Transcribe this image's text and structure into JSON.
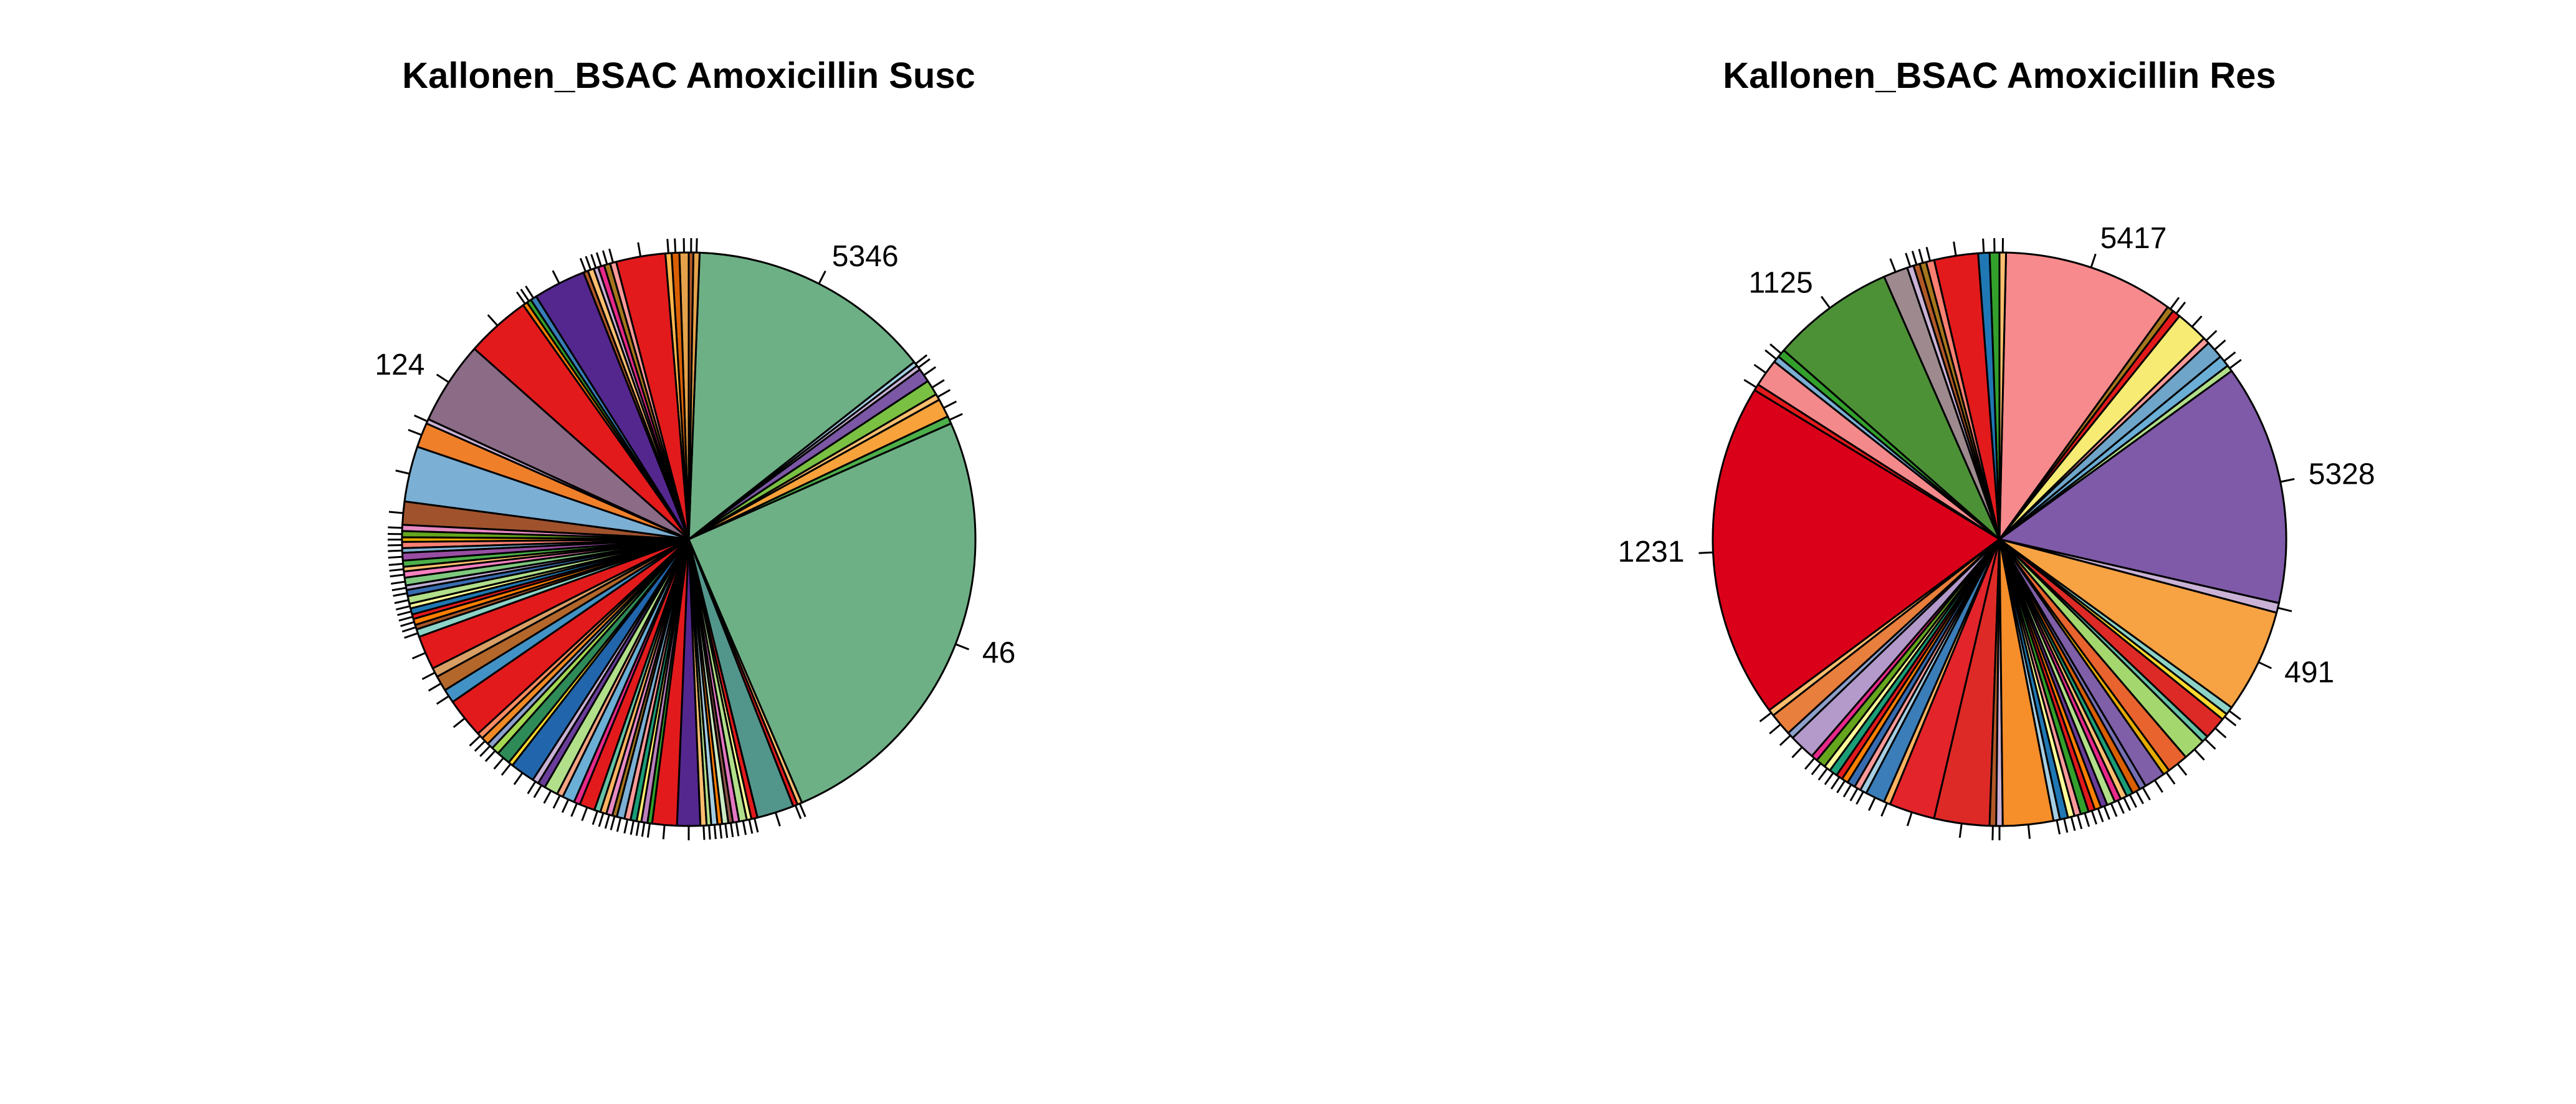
{
  "chart_data": [
    {
      "type": "pie",
      "title": "Kallonen_BSAC Amoxicillin Susc",
      "slices": [
        {
          "label": "",
          "value": 0.6,
          "color": "#E5A24A"
        },
        {
          "label": "",
          "value": 0.5,
          "color": "#D95F02"
        },
        {
          "label": "",
          "value": 0.4,
          "color": "#FFB74D"
        },
        {
          "label": "",
          "value": 3.2,
          "color": "#E31A1C"
        },
        {
          "label": "",
          "value": 0.4,
          "color": "#FB9A99"
        },
        {
          "label": "",
          "value": 0.4,
          "color": "#A6761D"
        },
        {
          "label": "",
          "value": 0.4,
          "color": "#E7298A"
        },
        {
          "label": "",
          "value": 0.3,
          "color": "#CAB2D6"
        },
        {
          "label": "",
          "value": 0.4,
          "color": "#FDBF6F"
        },
        {
          "label": "",
          "value": 0.3,
          "color": "#B15928"
        },
        {
          "label": "",
          "value": 3.4,
          "color": "#54278F"
        },
        {
          "label": "",
          "value": 0.4,
          "color": "#377EB8"
        },
        {
          "label": "",
          "value": 0.3,
          "color": "#33A02C"
        },
        {
          "label": "",
          "value": 0.3,
          "color": "#FF7F00"
        },
        {
          "label": "",
          "value": 4.2,
          "color": "#E31A1C"
        },
        {
          "label": "124",
          "value": 5.4,
          "color": "#8B6B86"
        },
        {
          "label": "",
          "value": 0.3,
          "color": "#CAB2D6"
        },
        {
          "label": "",
          "value": 1.6,
          "color": "#F07F29"
        },
        {
          "label": "",
          "value": 3.6,
          "color": "#7BAFD4"
        },
        {
          "label": "",
          "value": 1.5,
          "color": "#A0522D"
        },
        {
          "label": "",
          "value": 0.4,
          "color": "#E78AC3"
        },
        {
          "label": "",
          "value": 0.4,
          "color": "#66A61E"
        },
        {
          "label": "",
          "value": 0.3,
          "color": "#E6AB02"
        },
        {
          "label": "",
          "value": 0.4,
          "color": "#FB8072"
        },
        {
          "label": "",
          "value": 0.3,
          "color": "#80B1D3"
        },
        {
          "label": "",
          "value": 0.5,
          "color": "#984EA3"
        },
        {
          "label": "",
          "value": 0.4,
          "color": "#4DAF4A"
        },
        {
          "label": "",
          "value": 0.3,
          "color": "#FDBF6F"
        },
        {
          "label": "",
          "value": 0.4,
          "color": "#F781BF"
        },
        {
          "label": "",
          "value": 0.5,
          "color": "#7FC97F"
        },
        {
          "label": "",
          "value": 0.3,
          "color": "#BEAED4"
        },
        {
          "label": "",
          "value": 0.4,
          "color": "#386CB0"
        },
        {
          "label": "",
          "value": 0.5,
          "color": "#B2DF8A"
        },
        {
          "label": "",
          "value": 0.3,
          "color": "#FFFF99"
        },
        {
          "label": "",
          "value": 0.4,
          "color": "#1F78B4"
        },
        {
          "label": "",
          "value": 0.3,
          "color": "#E41A1C"
        },
        {
          "label": "",
          "value": 0.4,
          "color": "#FF7F00"
        },
        {
          "label": "",
          "value": 0.3,
          "color": "#A65628"
        },
        {
          "label": "",
          "value": 0.5,
          "color": "#8DD3C7"
        },
        {
          "label": "",
          "value": 2.2,
          "color": "#E31A1C"
        },
        {
          "label": "",
          "value": 0.6,
          "color": "#D9A066"
        },
        {
          "label": "",
          "value": 1.0,
          "color": "#B3672B"
        },
        {
          "label": "",
          "value": 0.9,
          "color": "#4292C6"
        },
        {
          "label": "",
          "value": 2.6,
          "color": "#E31A1C"
        },
        {
          "label": "",
          "value": 0.4,
          "color": "#FC8D62"
        },
        {
          "label": "",
          "value": 0.5,
          "color": "#F08A24"
        },
        {
          "label": "",
          "value": 0.4,
          "color": "#8DA0CB"
        },
        {
          "label": "",
          "value": 0.5,
          "color": "#A6D854"
        },
        {
          "label": "",
          "value": 0.9,
          "color": "#2E8B57"
        },
        {
          "label": "",
          "value": 0.3,
          "color": "#FFD92F"
        },
        {
          "label": "",
          "value": 1.6,
          "color": "#2166AC"
        },
        {
          "label": "",
          "value": 0.4,
          "color": "#CAB2D6"
        },
        {
          "label": "",
          "value": 0.5,
          "color": "#6A3D9A"
        },
        {
          "label": "",
          "value": 0.9,
          "color": "#B2DF8A"
        },
        {
          "label": "",
          "value": 0.4,
          "color": "#F4A582"
        },
        {
          "label": "",
          "value": 0.8,
          "color": "#6BAED6"
        },
        {
          "label": "",
          "value": 0.4,
          "color": "#E7298A"
        },
        {
          "label": "",
          "value": 1.0,
          "color": "#E31A1C"
        },
        {
          "label": "",
          "value": 0.4,
          "color": "#66C2A5"
        },
        {
          "label": "",
          "value": 0.4,
          "color": "#FDB462"
        },
        {
          "label": "",
          "value": 0.4,
          "color": "#E78AC3"
        },
        {
          "label": "",
          "value": 0.3,
          "color": "#A6761D"
        },
        {
          "label": "",
          "value": 0.5,
          "color": "#7BAFD4"
        },
        {
          "label": "",
          "value": 0.4,
          "color": "#FB9A99"
        },
        {
          "label": "",
          "value": 0.4,
          "color": "#1B9E77"
        },
        {
          "label": "",
          "value": 0.3,
          "color": "#FFED6F"
        },
        {
          "label": "",
          "value": 0.4,
          "color": "#BC80BD"
        },
        {
          "label": "",
          "value": 0.3,
          "color": "#33A02C"
        },
        {
          "label": "",
          "value": 1.6,
          "color": "#E31A1C"
        },
        {
          "label": "",
          "value": 1.5,
          "color": "#54278F"
        },
        {
          "label": "",
          "value": 0.4,
          "color": "#FDBF6F"
        },
        {
          "label": "",
          "value": 0.3,
          "color": "#B2DF8A"
        },
        {
          "label": "",
          "value": 0.4,
          "color": "#A6CEE3"
        },
        {
          "label": "",
          "value": 0.3,
          "color": "#FF7F00"
        },
        {
          "label": "",
          "value": 0.4,
          "color": "#CCEBC5"
        },
        {
          "label": "",
          "value": 0.3,
          "color": "#8C564B"
        },
        {
          "label": "",
          "value": 0.4,
          "color": "#E377C2"
        },
        {
          "label": "",
          "value": 0.5,
          "color": "#B2DF8A"
        },
        {
          "label": "",
          "value": 0.3,
          "color": "#FFFF99"
        },
        {
          "label": "",
          "value": 0.4,
          "color": "#E31A1C"
        },
        {
          "label": "",
          "value": 2.4,
          "color": "#52958B"
        },
        {
          "label": "",
          "value": 0.3,
          "color": "#E31A1C"
        },
        {
          "label": "",
          "value": 0.3,
          "color": "#FDBF6F"
        },
        {
          "label": "46",
          "value": 29.0,
          "color": "#6DB085"
        },
        {
          "label": "",
          "value": 0.5,
          "color": "#4DAF4A"
        },
        {
          "label": "",
          "value": 1.2,
          "color": "#F7A23B"
        },
        {
          "label": "",
          "value": 0.4,
          "color": "#FDBF6F"
        },
        {
          "label": "",
          "value": 1.0,
          "color": "#7AC143"
        },
        {
          "label": "",
          "value": 0.9,
          "color": "#7B57A5"
        },
        {
          "label": "",
          "value": 0.3,
          "color": "#CAB2D6"
        },
        {
          "label": "",
          "value": 0.3,
          "color": "#A6CEE3"
        },
        {
          "label": "5346",
          "value": 15.9,
          "color": "#6DB085"
        },
        {
          "label": "",
          "value": 0.4,
          "color": "#E5A24A"
        },
        {
          "label": "",
          "value": 0.3,
          "color": "#B15928"
        }
      ]
    },
    {
      "type": "pie",
      "title": "Kallonen_BSAC Amoxicillin Res",
      "slices": [
        {
          "label": "",
          "value": 0.6,
          "color": "#33A02C"
        },
        {
          "label": "",
          "value": 0.7,
          "color": "#1F78B4"
        },
        {
          "label": "",
          "value": 2.7,
          "color": "#E31A1C"
        },
        {
          "label": "",
          "value": 0.5,
          "color": "#FB8072"
        },
        {
          "label": "",
          "value": 0.4,
          "color": "#A6761D"
        },
        {
          "label": "",
          "value": 0.4,
          "color": "#B15928"
        },
        {
          "label": "",
          "value": 0.4,
          "color": "#CAB2D6"
        },
        {
          "label": "",
          "value": 1.5,
          "color": "#9E8A8E"
        },
        {
          "label": "1125",
          "value": 7.6,
          "color": "#4D9137"
        },
        {
          "label": "",
          "value": 0.5,
          "color": "#33A02C"
        },
        {
          "label": "",
          "value": 0.4,
          "color": "#7BAFD4"
        },
        {
          "label": "",
          "value": 1.7,
          "color": "#F4898C"
        },
        {
          "label": "",
          "value": 0.4,
          "color": "#E31A1C"
        },
        {
          "label": "1231",
          "value": 20.6,
          "color": "#DA0019"
        },
        {
          "label": "",
          "value": 0.4,
          "color": "#FDBF6F"
        },
        {
          "label": "",
          "value": 1.4,
          "color": "#E87F3C"
        },
        {
          "label": "",
          "value": 0.4,
          "color": "#8DA0CB"
        },
        {
          "label": "",
          "value": 1.6,
          "color": "#B39ACB"
        },
        {
          "label": "",
          "value": 0.4,
          "color": "#E7298A"
        },
        {
          "label": "",
          "value": 0.6,
          "color": "#66A61E"
        },
        {
          "label": "",
          "value": 0.4,
          "color": "#FFFF99"
        },
        {
          "label": "",
          "value": 0.5,
          "color": "#1B9E77"
        },
        {
          "label": "",
          "value": 0.4,
          "color": "#E31A1C"
        },
        {
          "label": "",
          "value": 0.4,
          "color": "#FF7F00"
        },
        {
          "label": "",
          "value": 0.5,
          "color": "#386CB0"
        },
        {
          "label": "",
          "value": 0.4,
          "color": "#FB9A99"
        },
        {
          "label": "",
          "value": 0.4,
          "color": "#A6CEE3"
        },
        {
          "label": "",
          "value": 1.2,
          "color": "#3A7DB8"
        },
        {
          "label": "",
          "value": 0.4,
          "color": "#FDB462"
        },
        {
          "label": "",
          "value": 2.8,
          "color": "#E3242B"
        },
        {
          "label": "",
          "value": 3.4,
          "color": "#DE2A26"
        },
        {
          "label": "",
          "value": 0.4,
          "color": "#B15928"
        },
        {
          "label": "",
          "value": 0.4,
          "color": "#CAB2D6"
        },
        {
          "label": "",
          "value": 3.1,
          "color": "#F68E2A"
        },
        {
          "label": "",
          "value": 0.4,
          "color": "#A6CEE3"
        },
        {
          "label": "",
          "value": 0.5,
          "color": "#1F78B4"
        },
        {
          "label": "",
          "value": 0.4,
          "color": "#FFFF99"
        },
        {
          "label": "",
          "value": 0.4,
          "color": "#FB9A99"
        },
        {
          "label": "",
          "value": 0.5,
          "color": "#33A02C"
        },
        {
          "label": "",
          "value": 0.4,
          "color": "#E31A1C"
        },
        {
          "label": "",
          "value": 0.4,
          "color": "#FF7F00"
        },
        {
          "label": "",
          "value": 0.4,
          "color": "#6A3D9A"
        },
        {
          "label": "",
          "value": 0.5,
          "color": "#B2DF8A"
        },
        {
          "label": "",
          "value": 0.4,
          "color": "#E7298A"
        },
        {
          "label": "",
          "value": 0.4,
          "color": "#FDBF6F"
        },
        {
          "label": "",
          "value": 0.4,
          "color": "#1B9E77"
        },
        {
          "label": "",
          "value": 0.5,
          "color": "#D95F02"
        },
        {
          "label": "",
          "value": 0.4,
          "color": "#7570B3"
        },
        {
          "label": "",
          "value": 1.3,
          "color": "#7F5FA8"
        },
        {
          "label": "",
          "value": 0.4,
          "color": "#E6AB02"
        },
        {
          "label": "",
          "value": 1.3,
          "color": "#E8632E"
        },
        {
          "label": "",
          "value": 1.4,
          "color": "#A4D86E"
        },
        {
          "label": "",
          "value": 0.4,
          "color": "#66C2A5"
        },
        {
          "label": "",
          "value": 1.4,
          "color": "#DE2A26"
        },
        {
          "label": "",
          "value": 0.4,
          "color": "#FFD92F"
        },
        {
          "label": "",
          "value": 0.5,
          "color": "#8DD3C7"
        },
        {
          "label": "491",
          "value": 6.4,
          "color": "#F7A243"
        },
        {
          "label": "",
          "value": 0.6,
          "color": "#CAB2D6"
        },
        {
          "label": "5328",
          "value": 14.8,
          "color": "#7F5AA8"
        },
        {
          "label": "",
          "value": 0.4,
          "color": "#B2DF8A"
        },
        {
          "label": "",
          "value": 0.7,
          "color": "#6BAED6"
        },
        {
          "label": "",
          "value": 1.1,
          "color": "#6FA5C8"
        },
        {
          "label": "",
          "value": 0.4,
          "color": "#FB9A99"
        },
        {
          "label": "",
          "value": 2.0,
          "color": "#F7EB74"
        },
        {
          "label": "",
          "value": 0.5,
          "color": "#E31A1C"
        },
        {
          "label": "",
          "value": 0.4,
          "color": "#A6761D"
        },
        {
          "label": "5417",
          "value": 10.5,
          "color": "#F78A8C"
        },
        {
          "label": "",
          "value": 0.4,
          "color": "#FDBF6F"
        }
      ]
    }
  ]
}
